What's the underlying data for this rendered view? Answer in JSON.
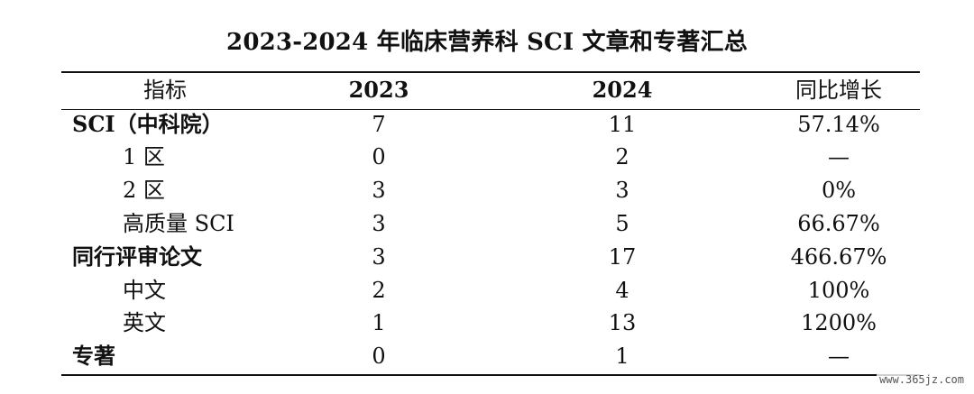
{
  "title": "2023-2024 年临床营养科 SCI 文章和专著汇总",
  "table": {
    "headers": {
      "indicator": "指标",
      "y2023": "2023",
      "y2024": "2024",
      "growth": "同比增长"
    },
    "rows": [
      {
        "label": "SCI（中科院）",
        "y2023": "7",
        "y2024": "11",
        "growth": "57.14%"
      },
      {
        "label": "1 区",
        "y2023": "0",
        "y2024": "2",
        "growth": "—"
      },
      {
        "label": "2 区",
        "y2023": "3",
        "y2024": "3",
        "growth": "0%"
      },
      {
        "label": "高质量 SCI",
        "y2023": "3",
        "y2024": "5",
        "growth": "66.67%"
      },
      {
        "label": "同行评审论文",
        "y2023": "3",
        "y2024": "17",
        "growth": "466.67%"
      },
      {
        "label": "中文",
        "y2023": "2",
        "y2024": "4",
        "growth": "100%"
      },
      {
        "label": "英文",
        "y2023": "1",
        "y2024": "13",
        "growth": "1200%"
      },
      {
        "label": "专著",
        "y2023": "0",
        "y2024": "1",
        "growth": "—"
      }
    ]
  },
  "watermark": "www.365jz.com"
}
